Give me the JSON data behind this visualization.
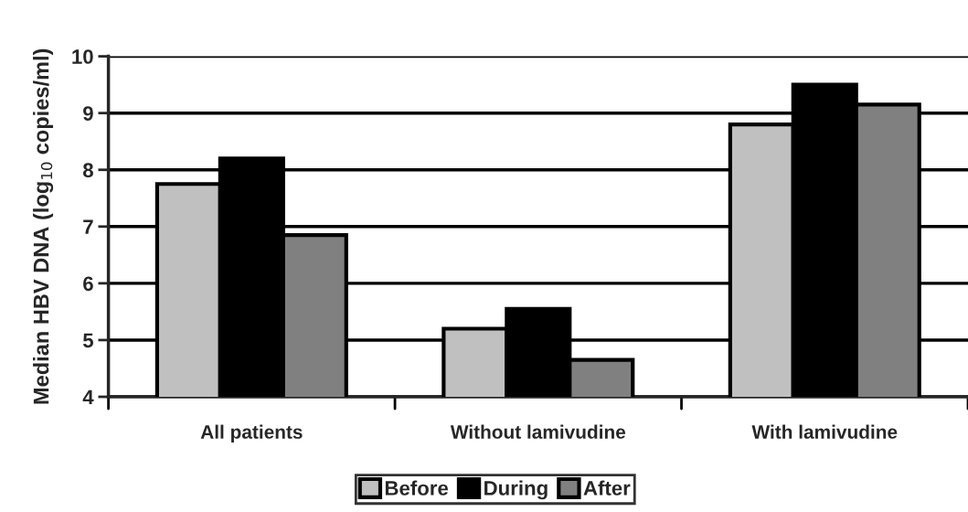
{
  "chart_data": {
    "type": "bar",
    "ylabel": "Median HBV DNA (log$_{10}$ copies/ml)",
    "categories": [
      "All patients",
      "Without lamivudine",
      "With lamivudine"
    ],
    "series": [
      {
        "name": "Before",
        "color": "#c0c0c0",
        "values": [
          7.75,
          5.2,
          8.8
        ]
      },
      {
        "name": "During",
        "color": "#000000",
        "values": [
          8.2,
          5.55,
          9.5
        ]
      },
      {
        "name": "After",
        "color": "#808080",
        "values": [
          6.85,
          4.65,
          9.15
        ]
      }
    ],
    "ylim": [
      4,
      10
    ],
    "yticks": [
      4,
      5,
      6,
      7,
      8,
      9,
      10
    ],
    "grid": "y",
    "legend": "bottom"
  }
}
